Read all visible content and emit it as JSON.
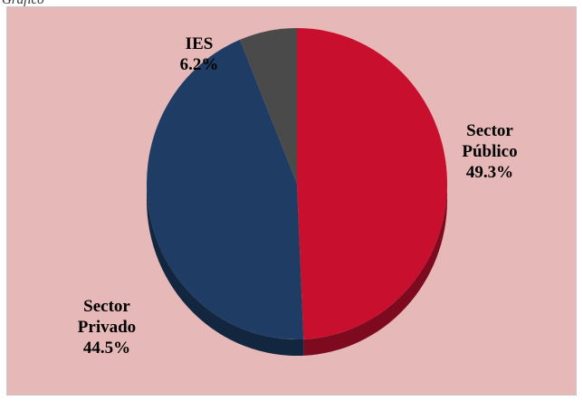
{
  "header_fragment": "Gráfico",
  "chart_data": {
    "type": "pie",
    "title": "",
    "slices": [
      {
        "label_lines": [
          "Sector",
          "Público"
        ],
        "percent_text": "49.3%",
        "value": 49.3,
        "color": "#c8102e",
        "side_color": "#7d0a1e"
      },
      {
        "label_lines": [
          "Sector",
          "Privado"
        ],
        "percent_text": "44.5%",
        "value": 44.5,
        "color": "#1f3c64",
        "side_color": "#12263f"
      },
      {
        "label_lines": [
          "IES"
        ],
        "percent_text": "6.2%",
        "value": 6.2,
        "color": "#4a4a4a",
        "side_color": "#2c2c2c"
      }
    ],
    "start": "12 o'clock",
    "direction": "clockwise",
    "style": "3d-tilted",
    "legend": "none"
  },
  "colors": {
    "background": "#e6b8b7"
  }
}
